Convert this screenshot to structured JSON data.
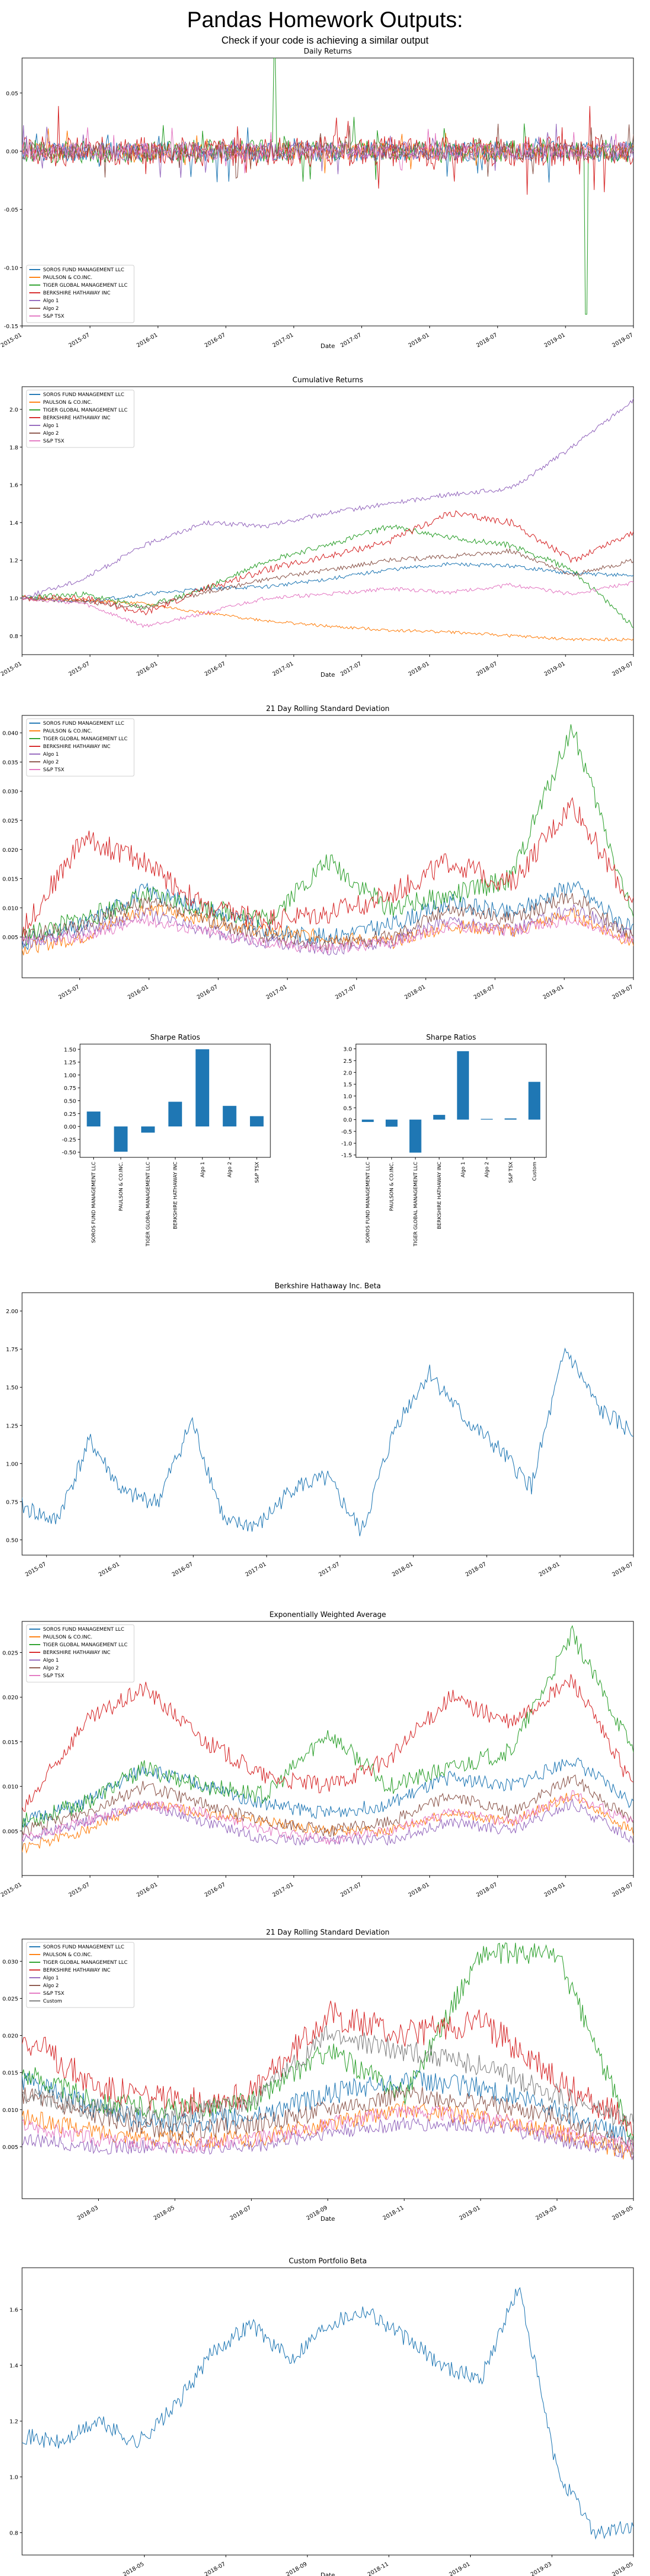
{
  "page": {
    "title": "Pandas Homework Outputs:",
    "subtitle": "Check if your code is achieving a similar output"
  },
  "colors": [
    "#1f77b4",
    "#ff7f0e",
    "#2ca02c",
    "#d62728",
    "#9467bd",
    "#8c564b",
    "#e377c2",
    "#7f7f7f"
  ],
  "chart_data": [
    {
      "type": "line",
      "title": "Daily Returns",
      "xlabel": "Date",
      "ylabel": "",
      "x_range": [
        "2015-01",
        "2019-07"
      ],
      "x_ticks": [
        "2015-01",
        "2015-07",
        "2016-01",
        "2016-07",
        "2017-01",
        "2017-07",
        "2018-01",
        "2018-07",
        "2019-01",
        "2019-07"
      ],
      "ylim": [
        -0.15,
        0.08
      ],
      "y_ticks": [
        "-0.15",
        "-0.10",
        "-0.05",
        "0.00",
        "0.05"
      ],
      "legend": "lower-left",
      "series": [
        {
          "name": "SOROS FUND MANAGEMENT LLC",
          "volatility": 0.009,
          "drift": 0.0,
          "seed": 11
        },
        {
          "name": "PAULSON & CO.INC.",
          "volatility": 0.007,
          "drift": 0.0,
          "seed": 12
        },
        {
          "name": "TIGER GLOBAL MANAGEMENT LLC",
          "volatility": 0.01,
          "drift": 0.0,
          "seed": 13,
          "events": [
            {
              "x": "2016-11-10",
              "y": 0.08
            },
            {
              "x": "2019-02-26",
              "y": -0.14
            }
          ]
        },
        {
          "name": "BERKSHIRE HATHAWAY INC",
          "volatility": 0.013,
          "drift": 0.0,
          "seed": 14
        },
        {
          "name": "Algo 1",
          "volatility": 0.008,
          "drift": 0.0,
          "seed": 15
        },
        {
          "name": "Algo 2",
          "volatility": 0.008,
          "drift": 0.0,
          "seed": 16
        },
        {
          "name": "S&P TSX",
          "volatility": 0.007,
          "drift": 0.0,
          "seed": 17
        }
      ]
    },
    {
      "type": "line",
      "title": "Cumulative Returns",
      "xlabel": "Date",
      "ylabel": "",
      "x_range": [
        "2015-01",
        "2019-07"
      ],
      "x_ticks": [
        "2015-01",
        "2015-07",
        "2016-01",
        "2016-07",
        "2017-01",
        "2017-07",
        "2018-01",
        "2018-07",
        "2019-01",
        "2019-07"
      ],
      "ylim": [
        0.7,
        2.12
      ],
      "y_ticks": [
        "0.8",
        "1.0",
        "1.2",
        "1.4",
        "1.6",
        "1.8",
        "2.0"
      ],
      "legend": "top-left",
      "series": [
        {
          "name": "SOROS FUND MANAGEMENT LLC",
          "anchors": [
            1.0,
            0.98,
            1.02,
            1.05,
            1.06,
            1.1,
            1.15,
            1.18,
            1.17,
            1.13,
            1.12
          ],
          "noise": 0.01,
          "seed": 21
        },
        {
          "name": "PAULSON & CO.INC.",
          "anchors": [
            1.0,
            0.99,
            0.97,
            0.92,
            0.88,
            0.85,
            0.83,
            0.82,
            0.8,
            0.78,
            0.78
          ],
          "noise": 0.008,
          "seed": 22
        },
        {
          "name": "TIGER GLOBAL MANAGEMENT LLC",
          "anchors": [
            1.0,
            1.02,
            0.95,
            1.05,
            1.2,
            1.28,
            1.38,
            1.32,
            1.28,
            1.15,
            0.85
          ],
          "noise": 0.015,
          "seed": 23
        },
        {
          "name": "BERKSHIRE HATHAWAY INC",
          "anchors": [
            1.0,
            1.0,
            0.92,
            1.05,
            1.15,
            1.22,
            1.3,
            1.45,
            1.4,
            1.2,
            1.35
          ],
          "noise": 0.018,
          "seed": 24
        },
        {
          "name": "Algo 1",
          "anchors": [
            1.0,
            1.1,
            1.28,
            1.4,
            1.38,
            1.45,
            1.5,
            1.55,
            1.58,
            1.8,
            2.05
          ],
          "noise": 0.012,
          "seed": 25
        },
        {
          "name": "Algo 2",
          "anchors": [
            1.0,
            0.98,
            0.95,
            1.03,
            1.1,
            1.15,
            1.2,
            1.22,
            1.25,
            1.12,
            1.2
          ],
          "noise": 0.012,
          "seed": 26
        },
        {
          "name": "S&P TSX",
          "anchors": [
            1.0,
            0.97,
            0.85,
            0.92,
            1.0,
            1.02,
            1.05,
            1.03,
            1.07,
            1.02,
            1.08
          ],
          "noise": 0.01,
          "seed": 27
        }
      ]
    },
    {
      "type": "line",
      "title": "21 Day Rolling Standard Deviation",
      "xlabel": "",
      "ylabel": "",
      "x_range": [
        "2015-02",
        "2019-07"
      ],
      "x_ticks": [
        "2015-07",
        "2016-01",
        "2016-07",
        "2017-01",
        "2017-07",
        "2018-01",
        "2018-07",
        "2019-01",
        "2019-07"
      ],
      "ylim": [
        -0.002,
        0.043
      ],
      "y_ticks": [
        "0.005",
        "0.010",
        "0.015",
        "0.020",
        "0.025",
        "0.030",
        "0.035",
        "0.040"
      ],
      "legend": "top-left",
      "series": [
        {
          "name": "SOROS FUND MANAGEMENT LLC",
          "anchors": [
            0.004,
            0.007,
            0.013,
            0.01,
            0.006,
            0.005,
            0.007,
            0.011,
            0.009,
            0.014,
            0.006
          ],
          "noise": 0.0015,
          "seed": 31
        },
        {
          "name": "PAULSON & CO.INC.",
          "anchors": [
            0.003,
            0.005,
            0.01,
            0.008,
            0.006,
            0.005,
            0.004,
            0.007,
            0.006,
            0.009,
            0.004
          ],
          "noise": 0.0012,
          "seed": 32
        },
        {
          "name": "TIGER GLOBAL MANAGEMENT LLC",
          "anchors": [
            0.005,
            0.008,
            0.012,
            0.01,
            0.008,
            0.018,
            0.01,
            0.012,
            0.015,
            0.041,
            0.008
          ],
          "noise": 0.0018,
          "seed": 33
        },
        {
          "name": "BERKSHIRE HATHAWAY INC",
          "anchors": [
            0.006,
            0.022,
            0.018,
            0.01,
            0.008,
            0.009,
            0.012,
            0.018,
            0.014,
            0.028,
            0.01
          ],
          "noise": 0.002,
          "seed": 34
        },
        {
          "name": "Algo 1",
          "anchors": [
            0.004,
            0.006,
            0.009,
            0.006,
            0.004,
            0.003,
            0.004,
            0.008,
            0.006,
            0.01,
            0.005
          ],
          "noise": 0.0012,
          "seed": 35
        },
        {
          "name": "Algo 2",
          "anchors": [
            0.005,
            0.007,
            0.011,
            0.008,
            0.005,
            0.004,
            0.005,
            0.01,
            0.008,
            0.012,
            0.005
          ],
          "noise": 0.0013,
          "seed": 36
        },
        {
          "name": "S&P TSX",
          "anchors": [
            0.004,
            0.005,
            0.008,
            0.006,
            0.004,
            0.003,
            0.004,
            0.007,
            0.006,
            0.008,
            0.004
          ],
          "noise": 0.001,
          "seed": 37
        }
      ]
    },
    {
      "type": "bar",
      "title": "Sharpe Ratios",
      "categories": [
        "SOROS FUND MANAGEMENT LLC",
        "PAULSON & CO.INC.",
        "TIGER GLOBAL MANAGEMENT LLC",
        "BERKSHIRE HATHAWAY INC",
        "Algo 1",
        "Algo 2",
        "S&P TSX"
      ],
      "values": [
        0.29,
        -0.49,
        -0.12,
        0.48,
        1.5,
        0.4,
        0.2
      ],
      "ylim": [
        -0.6,
        1.6
      ],
      "y_ticks": [
        "-0.50",
        "-0.25",
        "0.00",
        "0.25",
        "0.50",
        "0.75",
        "1.00",
        "1.25",
        "1.50"
      ]
    },
    {
      "type": "bar",
      "title": "Sharpe Ratios",
      "categories": [
        "SOROS FUND MANAGEMENT LLC",
        "PAULSON & CO.INC.",
        "TIGER GLOBAL MANAGEMENT LLC",
        "BERKSHIRE HATHAWAY INC",
        "Algo 1",
        "Algo 2",
        "S&P TSX",
        "Custom"
      ],
      "values": [
        -0.1,
        -0.3,
        -1.4,
        0.2,
        2.9,
        0.03,
        0.05,
        1.6
      ],
      "ylim": [
        -1.6,
        3.2
      ],
      "y_ticks": [
        "-1.5",
        "-1.0",
        "-0.5",
        "0.0",
        "0.5",
        "1.0",
        "1.5",
        "2.0",
        "2.5",
        "3.0"
      ]
    },
    {
      "type": "line",
      "title": "Berkshire Hathaway Inc. Beta",
      "xlabel": "",
      "ylabel": "",
      "x_range": [
        "2015-05",
        "2019-07"
      ],
      "x_ticks": [
        "2015-07",
        "2016-01",
        "2016-07",
        "2017-01",
        "2017-07",
        "2018-01",
        "2018-07",
        "2019-01",
        "2019-07"
      ],
      "ylim": [
        0.4,
        2.12
      ],
      "y_ticks": [
        "0.50",
        "0.75",
        "1.00",
        "1.25",
        "1.50",
        "1.75",
        "2.00"
      ],
      "legend": "none",
      "series": [
        {
          "name": "",
          "anchors": [
            0.72,
            0.62,
            1.15,
            0.8,
            0.75,
            1.28,
            0.6,
            0.6,
            0.85,
            0.9,
            0.55,
            1.25,
            1.6,
            1.3,
            1.1,
            0.85,
            1.75,
            1.35,
            1.2
          ],
          "noise": 0.06,
          "seed": 41
        }
      ]
    },
    {
      "type": "line",
      "title": "Exponentially Weighted Average",
      "xlabel": "",
      "ylabel": "",
      "x_range": [
        "2015-01",
        "2019-07"
      ],
      "x_ticks": [
        "2015-01",
        "2015-07",
        "2016-01",
        "2016-07",
        "2017-01",
        "2017-07",
        "2018-01",
        "2018-07",
        "2019-01",
        "2019-07"
      ],
      "ylim": [
        0.0,
        0.0285
      ],
      "y_ticks": [
        "0.005",
        "0.010",
        "0.015",
        "0.020",
        "0.025"
      ],
      "legend": "top-left",
      "series": [
        {
          "name": "SOROS FUND MANAGEMENT LLC",
          "anchors": [
            0.006,
            0.008,
            0.012,
            0.01,
            0.008,
            0.007,
            0.008,
            0.011,
            0.01,
            0.013,
            0.008
          ],
          "noise": 0.0008,
          "seed": 51
        },
        {
          "name": "PAULSON & CO.INC.",
          "anchors": [
            0.003,
            0.005,
            0.008,
            0.007,
            0.006,
            0.005,
            0.005,
            0.007,
            0.006,
            0.009,
            0.005
          ],
          "noise": 0.0006,
          "seed": 52
        },
        {
          "name": "TIGER GLOBAL MANAGEMENT LLC",
          "anchors": [
            0.006,
            0.008,
            0.012,
            0.01,
            0.009,
            0.016,
            0.01,
            0.012,
            0.014,
            0.027,
            0.014
          ],
          "noise": 0.001,
          "seed": 53
        },
        {
          "name": "BERKSHIRE HATHAWAY INC",
          "anchors": [
            0.007,
            0.017,
            0.021,
            0.015,
            0.011,
            0.01,
            0.013,
            0.02,
            0.017,
            0.022,
            0.01
          ],
          "noise": 0.001,
          "seed": 54
        },
        {
          "name": "Algo 1",
          "anchors": [
            0.004,
            0.006,
            0.008,
            0.006,
            0.004,
            0.004,
            0.004,
            0.006,
            0.005,
            0.008,
            0.004
          ],
          "noise": 0.0006,
          "seed": 55
        },
        {
          "name": "Algo 2",
          "anchors": [
            0.005,
            0.007,
            0.01,
            0.008,
            0.006,
            0.005,
            0.006,
            0.009,
            0.007,
            0.011,
            0.006
          ],
          "noise": 0.0007,
          "seed": 56
        },
        {
          "name": "S&P TSX",
          "anchors": [
            0.004,
            0.006,
            0.008,
            0.007,
            0.005,
            0.004,
            0.005,
            0.007,
            0.006,
            0.009,
            0.006
          ],
          "noise": 0.0006,
          "seed": 57
        }
      ]
    },
    {
      "type": "line",
      "title": "21 Day Rolling Standard Deviation",
      "xlabel": "Date",
      "ylabel": "",
      "x_range": [
        "2018-01",
        "2019-05"
      ],
      "x_ticks": [
        "2018-03",
        "2018-05",
        "2018-07",
        "2018-09",
        "2018-11",
        "2019-01",
        "2019-03",
        "2019-05"
      ],
      "ylim": [
        -0.002,
        0.033
      ],
      "y_ticks": [
        "0.005",
        "0.010",
        "0.015",
        "0.020",
        "0.025",
        "0.030"
      ],
      "legend": "top-left",
      "series": [
        {
          "name": "SOROS FUND MANAGEMENT LLC",
          "anchors": [
            0.014,
            0.01,
            0.008,
            0.009,
            0.012,
            0.014,
            0.013,
            0.01,
            0.006
          ],
          "noise": 0.0015,
          "seed": 61
        },
        {
          "name": "PAULSON & CO.INC.",
          "anchors": [
            0.009,
            0.007,
            0.006,
            0.006,
            0.008,
            0.01,
            0.009,
            0.007,
            0.004
          ],
          "noise": 0.0012,
          "seed": 62
        },
        {
          "name": "TIGER GLOBAL MANAGEMENT LLC",
          "anchors": [
            0.015,
            0.011,
            0.01,
            0.011,
            0.018,
            0.012,
            0.031,
            0.031,
            0.006
          ],
          "noise": 0.0015,
          "seed": 63
        },
        {
          "name": "BERKSHIRE HATHAWAY INC",
          "anchors": [
            0.02,
            0.013,
            0.011,
            0.012,
            0.023,
            0.02,
            0.022,
            0.014,
            0.008
          ],
          "noise": 0.002,
          "seed": 64
        },
        {
          "name": "Algo 1",
          "anchors": [
            0.006,
            0.005,
            0.005,
            0.005,
            0.007,
            0.008,
            0.008,
            0.006,
            0.004
          ],
          "noise": 0.001,
          "seed": 65
        },
        {
          "name": "Algo 2",
          "anchors": [
            0.012,
            0.009,
            0.007,
            0.008,
            0.01,
            0.012,
            0.011,
            0.009,
            0.005
          ],
          "noise": 0.0013,
          "seed": 66
        },
        {
          "name": "S&P TSX",
          "anchors": [
            0.008,
            0.006,
            0.005,
            0.006,
            0.008,
            0.01,
            0.009,
            0.007,
            0.005
          ],
          "noise": 0.001,
          "seed": 67
        },
        {
          "name": "Custom",
          "anchors": [
            0.012,
            0.01,
            0.009,
            0.011,
            0.02,
            0.018,
            0.016,
            0.012,
            0.008
          ],
          "noise": 0.0015,
          "seed": 68
        }
      ]
    },
    {
      "type": "line",
      "title": "Custom Portfolio Beta",
      "xlabel": "Date",
      "ylabel": "",
      "x_range": [
        "2018-02",
        "2019-05"
      ],
      "x_ticks": [
        "2018-05",
        "2018-07",
        "2018-09",
        "2018-11",
        "2019-01",
        "2019-03",
        "2019-05"
      ],
      "ylim": [
        0.72,
        1.75
      ],
      "y_ticks": [
        "0.8",
        "1.0",
        "1.2",
        "1.4",
        "1.6"
      ],
      "legend": "none",
      "series": [
        {
          "name": "",
          "anchors": [
            1.15,
            1.12,
            1.2,
            1.12,
            1.25,
            1.45,
            1.55,
            1.42,
            1.55,
            1.6,
            1.5,
            1.4,
            1.35,
            1.68,
            1.02,
            0.8,
            0.82
          ],
          "noise": 0.03,
          "seed": 71
        }
      ]
    }
  ]
}
